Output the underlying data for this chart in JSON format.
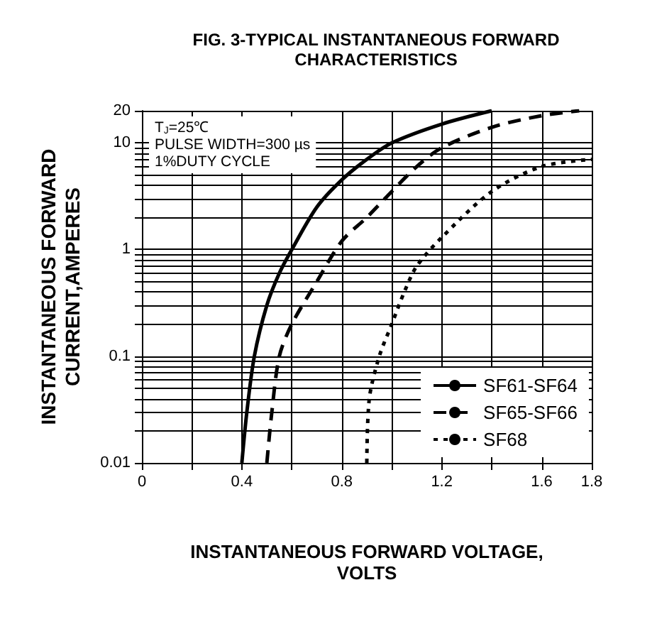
{
  "chart_data": {
    "type": "line",
    "title": "FIG. 3-TYPICAL INSTANTANEOUS FORWARD\nCHARACTERISTICS",
    "xlabel": "INSTANTANEOUS FORWARD VOLTAGE,\nVOLTS",
    "ylabel": "INSTANTANEOUS FORWARD\nCURRENT,AMPERES",
    "annotations": [
      "T$_{J}$=25℃\nPULSE WIDTH=300 µs\n1%DUTY CYCLE"
    ],
    "log": "y",
    "grid": true,
    "legend": "bottom right",
    "marker": "none",
    "xlim": [
      0,
      1.8
    ],
    "xticks": [
      0,
      {
        "value": 0.2,
        "label": null
      },
      0.4,
      {
        "value": 0.6,
        "label": null
      },
      0.8,
      {
        "value": 1.0,
        "label": null
      },
      1.2,
      {
        "value": 1.4,
        "label": null
      },
      1.6,
      1.8
    ],
    "ylim": [
      0.01,
      20
    ],
    "yticks": [
      0.01,
      {
        "value": 0.02,
        "label": null
      },
      {
        "value": 0.03,
        "label": null
      },
      {
        "value": 0.04,
        "label": null
      },
      {
        "value": 0.05,
        "label": null
      },
      {
        "value": 0.06,
        "label": null
      },
      {
        "value": 0.07,
        "label": null
      },
      {
        "value": 0.08,
        "label": null
      },
      {
        "value": 0.09,
        "label": null
      },
      0.1,
      {
        "value": 0.2,
        "label": null
      },
      {
        "value": 0.3,
        "label": null
      },
      {
        "value": 0.4,
        "label": null
      },
      {
        "value": 0.5,
        "label": null
      },
      {
        "value": 0.6,
        "label": null
      },
      {
        "value": 0.7,
        "label": null
      },
      {
        "value": 0.8,
        "label": null
      },
      {
        "value": 0.9,
        "label": null
      },
      1,
      {
        "value": 2,
        "label": null
      },
      {
        "value": 3,
        "label": null
      },
      {
        "value": 4,
        "label": null
      },
      {
        "value": 5,
        "label": null
      },
      {
        "value": 6,
        "label": null
      },
      {
        "value": 7,
        "label": null
      },
      {
        "value": 8,
        "label": null
      },
      {
        "value": 9,
        "label": null
      },
      10,
      20
    ],
    "series": [
      {
        "name": "SF61-SF64",
        "color": "#000000",
        "line_style": "solid",
        "x": [
          0.4,
          0.42,
          0.45,
          0.5,
          0.55,
          0.6,
          0.7,
          0.8,
          0.9,
          1.0,
          1.2,
          1.4
        ],
        "values": [
          0.01,
          0.03,
          0.1,
          0.3,
          0.6,
          1,
          2.5,
          4.5,
          7,
          10,
          15,
          20
        ]
      },
      {
        "name": "SF65-SF66",
        "color": "#000000",
        "line_style": "dashed",
        "x": [
          0.5,
          0.52,
          0.55,
          0.6,
          0.7,
          0.8,
          0.9,
          1.0,
          1.1,
          1.2,
          1.4,
          1.6,
          1.75
        ],
        "values": [
          0.01,
          0.03,
          0.1,
          0.2,
          0.5,
          1.2,
          2,
          3.5,
          6,
          9,
          14,
          18,
          20
        ]
      },
      {
        "name": "SF68",
        "color": "#000000",
        "line_style": "dotted",
        "x": [
          0.9,
          0.91,
          0.95,
          1.0,
          1.05,
          1.1,
          1.2,
          1.4,
          1.6,
          1.8
        ],
        "values": [
          0.01,
          0.04,
          0.1,
          0.2,
          0.4,
          0.7,
          1.3,
          3.5,
          6,
          7
        ]
      }
    ]
  }
}
